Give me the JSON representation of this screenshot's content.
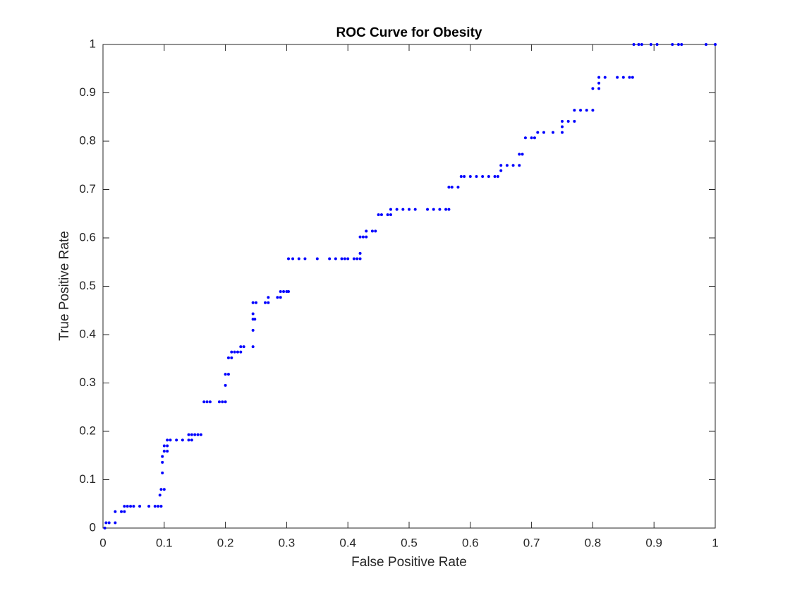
{
  "chart_data": {
    "type": "scatter",
    "title": "ROC Curve for Obesity",
    "xlabel": "False Positive Rate",
    "ylabel": "True Positive Rate",
    "color": "#0000ff",
    "grid": false,
    "xlim": [
      0,
      1
    ],
    "ylim": [
      0,
      1
    ],
    "xticks": [
      0,
      0.1,
      0.2,
      0.3,
      0.4,
      0.5,
      0.6,
      0.7,
      0.8,
      0.9,
      1
    ],
    "yticks": [
      0,
      0.1,
      0.2,
      0.3,
      0.4,
      0.5,
      0.6,
      0.7,
      0.8,
      0.9,
      1
    ],
    "x": [
      0.003,
      0.005,
      0.01,
      0.02,
      0.02,
      0.03,
      0.035,
      0.035,
      0.04,
      0.045,
      0.05,
      0.06,
      0.075,
      0.085,
      0.09,
      0.095,
      0.093,
      0.095,
      0.1,
      0.097,
      0.097,
      0.097,
      0.1,
      0.105,
      0.1,
      0.105,
      0.105,
      0.11,
      0.12,
      0.13,
      0.14,
      0.145,
      0.14,
      0.145,
      0.15,
      0.155,
      0.16,
      0.165,
      0.17,
      0.175,
      0.19,
      0.195,
      0.2,
      0.2,
      0.2,
      0.205,
      0.205,
      0.21,
      0.21,
      0.215,
      0.22,
      0.225,
      0.225,
      0.23,
      0.245,
      0.245,
      0.245,
      0.248,
      0.245,
      0.245,
      0.25,
      0.265,
      0.27,
      0.27,
      0.285,
      0.29,
      0.29,
      0.295,
      0.3,
      0.303,
      0.303,
      0.31,
      0.32,
      0.33,
      0.35,
      0.37,
      0.38,
      0.39,
      0.395,
      0.4,
      0.41,
      0.415,
      0.42,
      0.42,
      0.42,
      0.425,
      0.43,
      0.43,
      0.44,
      0.445,
      0.45,
      0.455,
      0.465,
      0.47,
      0.47,
      0.48,
      0.49,
      0.5,
      0.51,
      0.53,
      0.54,
      0.55,
      0.56,
      0.565,
      0.565,
      0.57,
      0.58,
      0.585,
      0.59,
      0.6,
      0.61,
      0.62,
      0.63,
      0.64,
      0.645,
      0.65,
      0.65,
      0.66,
      0.67,
      0.68,
      0.68,
      0.685,
      0.69,
      0.7,
      0.705,
      0.71,
      0.72,
      0.735,
      0.75,
      0.75,
      0.75,
      0.76,
      0.77,
      0.77,
      0.78,
      0.79,
      0.8,
      0.8,
      0.81,
      0.81,
      0.81,
      0.82,
      0.84,
      0.85,
      0.86,
      0.865,
      0.867,
      0.875,
      0.88,
      0.895,
      0.905,
      0.93,
      0.94,
      0.945,
      0.985,
      1
    ],
    "values": [
      0,
      0.011,
      0.011,
      0.011,
      0.034,
      0.034,
      0.034,
      0.045,
      0.045,
      0.045,
      0.045,
      0.045,
      0.045,
      0.045,
      0.045,
      0.045,
      0.068,
      0.08,
      0.08,
      0.114,
      0.136,
      0.148,
      0.159,
      0.159,
      0.17,
      0.17,
      0.182,
      0.182,
      0.182,
      0.182,
      0.182,
      0.182,
      0.193,
      0.193,
      0.193,
      0.193,
      0.193,
      0.261,
      0.261,
      0.261,
      0.261,
      0.261,
      0.261,
      0.295,
      0.318,
      0.318,
      0.352,
      0.352,
      0.364,
      0.364,
      0.364,
      0.364,
      0.375,
      0.375,
      0.375,
      0.409,
      0.432,
      0.432,
      0.443,
      0.466,
      0.466,
      0.466,
      0.466,
      0.477,
      0.477,
      0.477,
      0.489,
      0.489,
      0.489,
      0.489,
      0.557,
      0.557,
      0.557,
      0.557,
      0.557,
      0.557,
      0.557,
      0.557,
      0.557,
      0.557,
      0.557,
      0.557,
      0.557,
      0.568,
      0.602,
      0.602,
      0.602,
      0.614,
      0.614,
      0.614,
      0.648,
      0.648,
      0.648,
      0.648,
      0.659,
      0.659,
      0.659,
      0.659,
      0.659,
      0.659,
      0.659,
      0.659,
      0.659,
      0.659,
      0.705,
      0.705,
      0.705,
      0.727,
      0.727,
      0.727,
      0.727,
      0.727,
      0.727,
      0.727,
      0.727,
      0.739,
      0.75,
      0.75,
      0.75,
      0.75,
      0.773,
      0.773,
      0.807,
      0.807,
      0.807,
      0.818,
      0.818,
      0.818,
      0.818,
      0.83,
      0.841,
      0.841,
      0.841,
      0.864,
      0.864,
      0.864,
      0.864,
      0.909,
      0.909,
      0.92,
      0.932,
      0.932,
      0.932,
      0.932,
      0.932,
      0.932,
      1,
      1,
      1,
      1,
      1,
      1,
      1,
      1,
      1,
      1
    ]
  }
}
